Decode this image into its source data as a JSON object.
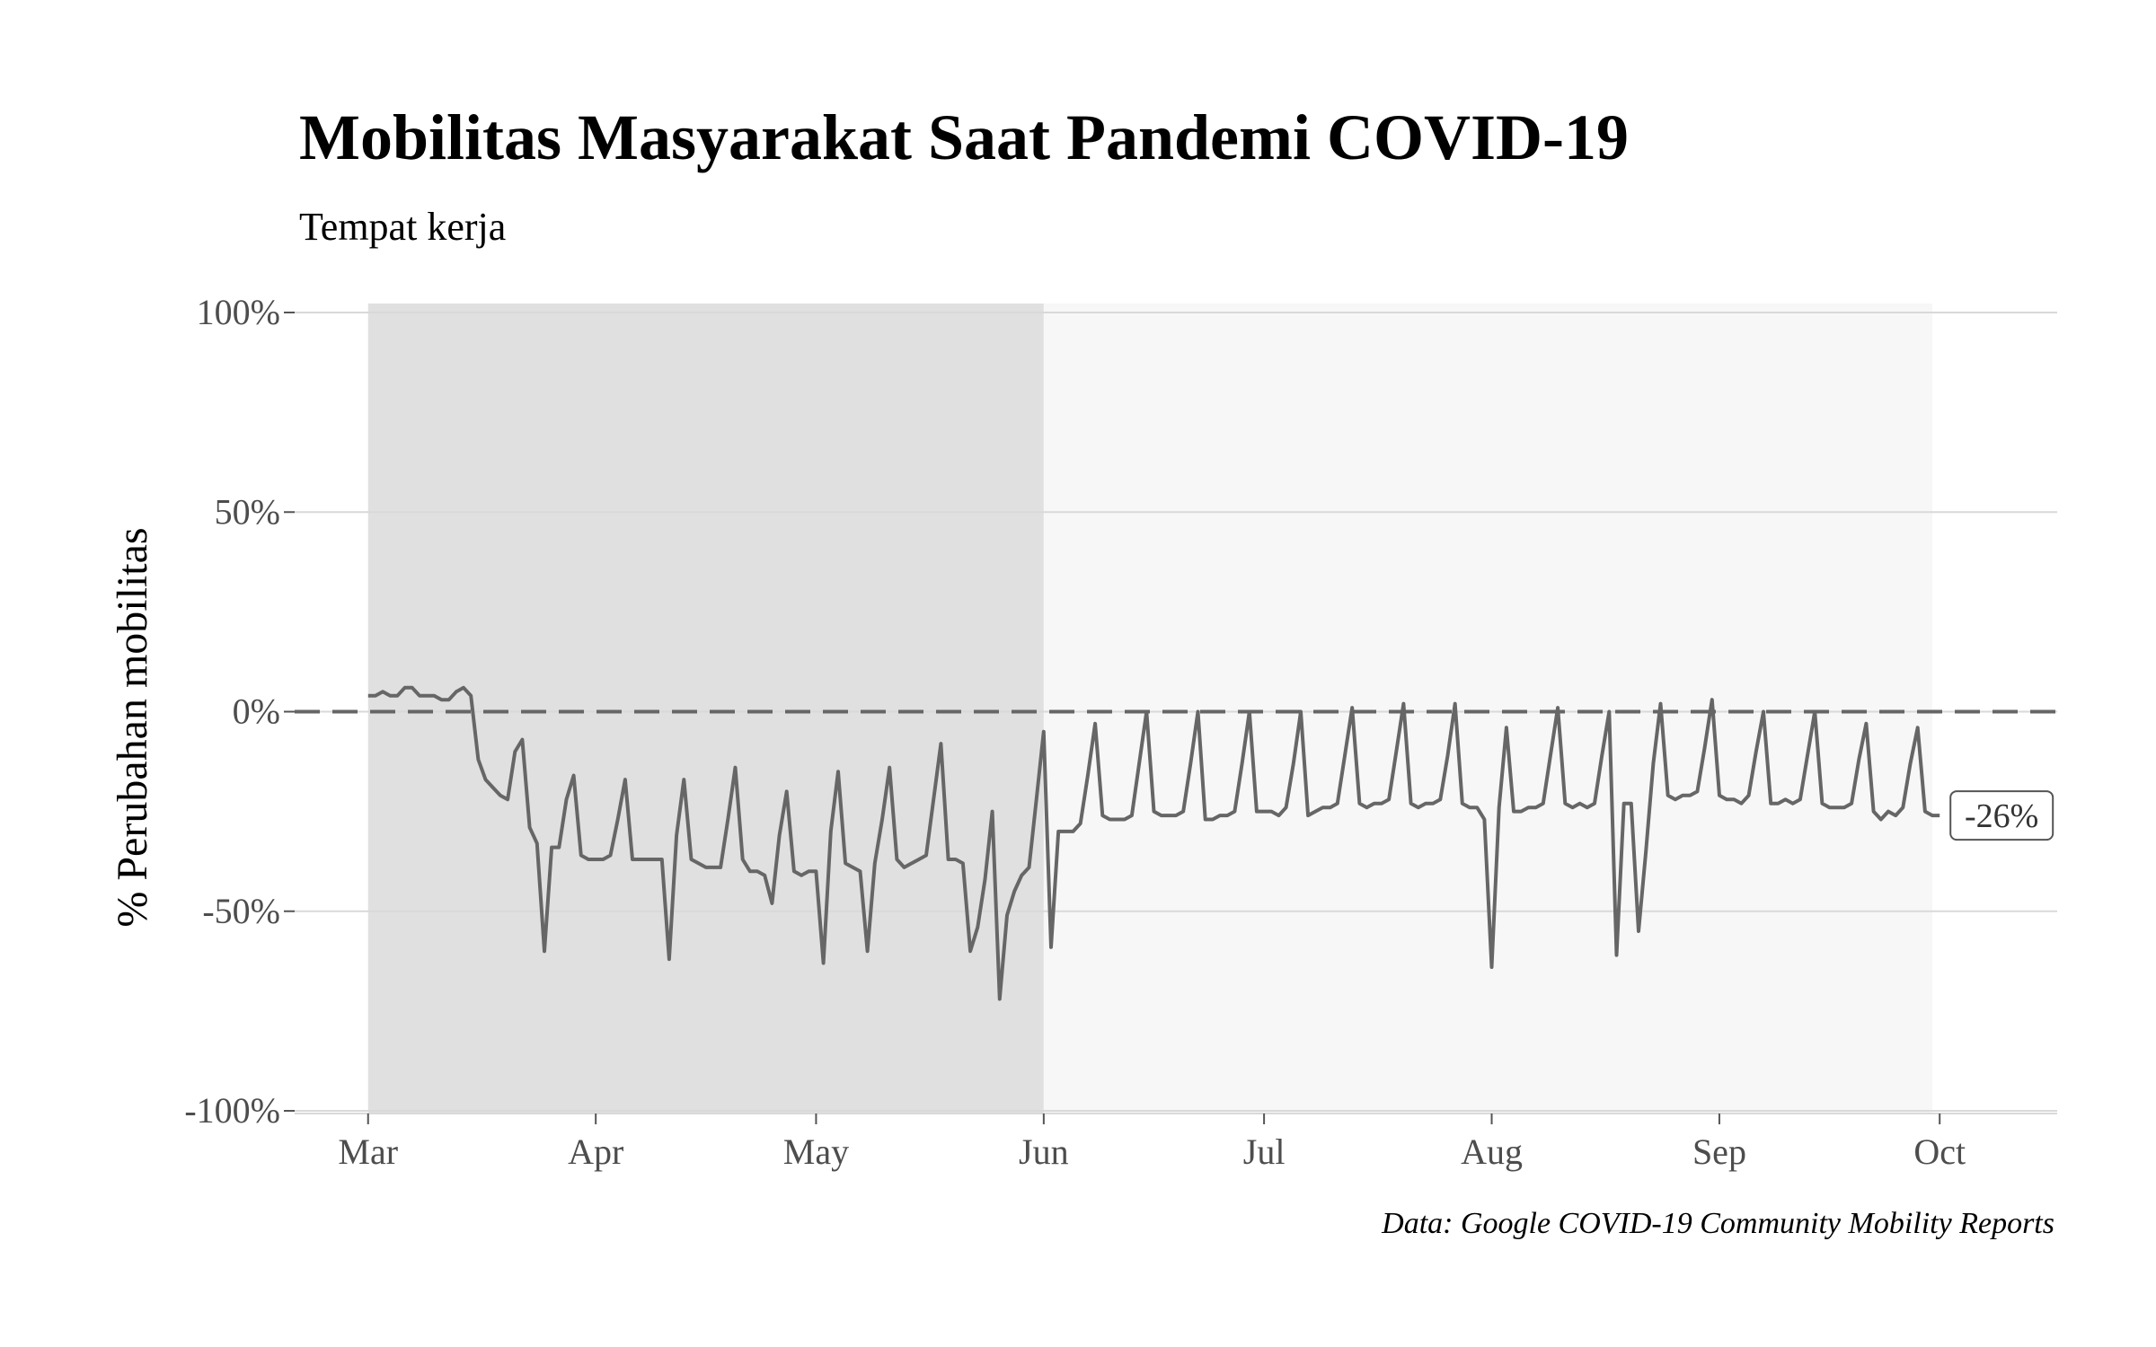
{
  "chart_data": {
    "type": "line",
    "title": "Mobilitas Masyarakat Saat Pandemi COVID-19",
    "subtitle": "Tempat kerja",
    "ylabel": "% Perubahan mobilitas",
    "caption": "Data: Google COVID-19 Community Mobility Reports",
    "ylim": [
      -100,
      100
    ],
    "yticks": [
      -100,
      -50,
      0,
      50,
      100
    ],
    "ytick_labels": [
      "-100%",
      "-50%",
      "0%",
      "50%",
      "100%"
    ],
    "xticks": [
      "2020-03-01",
      "2020-04-01",
      "2020-05-01",
      "2020-06-01",
      "2020-07-01",
      "2020-08-01",
      "2020-09-01",
      "2020-10-01"
    ],
    "xtick_labels": [
      "Mar",
      "Apr",
      "May",
      "Jun",
      "Jul",
      "Aug",
      "Sep",
      "Oct"
    ],
    "xlim": [
      "2020-02-20",
      "2020-10-17"
    ],
    "shaded_periods": [
      {
        "start": "2020-03-01",
        "end": "2020-06-01",
        "color": "#e0e0e0"
      },
      {
        "start": "2020-06-01",
        "end": "2020-09-30",
        "color": "#f7f7f7"
      }
    ],
    "reference_line": {
      "y": 0,
      "style": "dashed"
    },
    "end_label": "-26%",
    "colors": {
      "line": "#666666",
      "grid": "#d9d9d9",
      "reference": "#666666"
    },
    "series": [
      {
        "start_date": "2020-03-01",
        "values": [
          4,
          4,
          5,
          4,
          4,
          6,
          6,
          4,
          4,
          4,
          3,
          3,
          5,
          6,
          4,
          -12,
          -17,
          -19,
          -21,
          -22,
          -10,
          -7,
          -29,
          -33,
          -60,
          -34,
          -34,
          -22,
          -16,
          -36,
          -37,
          -37,
          -37,
          -36,
          -27,
          -17,
          -37,
          -37,
          -37,
          -37,
          -37,
          -62,
          -31,
          -17,
          -37,
          -38,
          -39,
          -39,
          -39,
          -27,
          -14,
          -37,
          -40,
          -40,
          -41,
          -48,
          -31,
          -20,
          -40,
          -41,
          -40,
          -40,
          -63,
          -30,
          -15,
          -38,
          -39,
          -40,
          -60,
          -38,
          -27,
          -14,
          -37,
          -39,
          -38,
          -37,
          -36,
          -22,
          -8,
          -37,
          -37,
          -38,
          -60,
          -54,
          -42,
          -25,
          -72,
          -51,
          -45,
          -41,
          -39,
          -22,
          -5,
          -59,
          -30,
          -30,
          -30,
          -28,
          -16,
          -3,
          -26,
          -27,
          -27,
          -27,
          -26,
          -13,
          0,
          -25,
          -26,
          -26,
          -26,
          -25,
          -13,
          0,
          -27,
          -27,
          -26,
          -26,
          -25,
          -13,
          0,
          -25,
          -25,
          -25,
          -26,
          -24,
          -13,
          0,
          -26,
          -25,
          -24,
          -24,
          -23,
          -11,
          1,
          -23,
          -24,
          -23,
          -23,
          -22,
          -10,
          2,
          -23,
          -24,
          -23,
          -23,
          -22,
          -11,
          2,
          -23,
          -24,
          -24,
          -27,
          -64,
          -24,
          -4,
          -25,
          -25,
          -24,
          -24,
          -23,
          -11,
          1,
          -23,
          -24,
          -23,
          -24,
          -23,
          -11,
          0,
          -61,
          -23,
          -23,
          -55,
          -35,
          -13,
          2,
          -21,
          -22,
          -21,
          -21,
          -20,
          -9,
          3,
          -21,
          -22,
          -22,
          -23,
          -21,
          -10,
          0,
          -23,
          -23,
          -22,
          -23,
          -22,
          -11,
          0,
          -23,
          -24,
          -24,
          -24,
          -23,
          -12,
          -3,
          -25,
          -27,
          -25,
          -26,
          -24,
          -13,
          -4,
          -25,
          -26,
          -26
        ]
      }
    ]
  }
}
